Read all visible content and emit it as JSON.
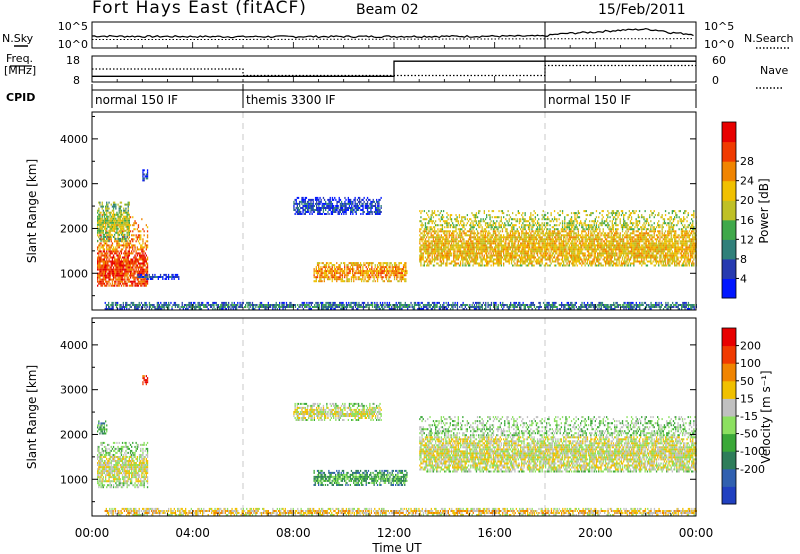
{
  "header": {
    "site": "Fort Hays East (fitACF)",
    "beam": "Beam 02",
    "date": "15/Feb/2011"
  },
  "left_labels": {
    "nsky": "N.Sky",
    "freq_line1": "Freq.",
    "freq_line2": "[MHz]",
    "cpid": "CPID"
  },
  "right_labels": {
    "nsearch": "N.Search",
    "nave": "Nave"
  },
  "chart_data": [
    {
      "type": "line",
      "name": "noise-panel",
      "left_axis": {
        "ticks": [
          "10^5",
          "10^0"
        ]
      },
      "right_axis": {
        "ticks": [
          "10^5",
          "10^0"
        ]
      },
      "series": [
        {
          "name": "N.Sky",
          "style": "solid",
          "x": [
            0,
            2,
            4,
            6,
            8,
            10,
            12,
            14,
            16,
            18,
            20,
            21,
            22,
            23,
            24
          ],
          "y": [
            300,
            250,
            240,
            220,
            230,
            240,
            250,
            260,
            280,
            300,
            2000,
            5000,
            8000,
            1500,
            500
          ]
        },
        {
          "name": "N.Search",
          "style": "dotted",
          "x": [
            0,
            6,
            12,
            18,
            24
          ],
          "y": [
            60,
            60,
            70,
            80,
            90
          ]
        }
      ]
    },
    {
      "type": "line",
      "name": "freq-nave-panel",
      "left_axis": {
        "label": "Freq. [MHz]",
        "ticks": [
          "18",
          "8"
        ],
        "range": [
          8,
          18
        ]
      },
      "right_axis": {
        "label": "Nave",
        "ticks": [
          "60",
          "0"
        ],
        "range": [
          0,
          60
        ]
      },
      "series": [
        {
          "name": "Freq",
          "style": "solid",
          "segments": [
            {
              "x0": 0,
              "x1": 6,
              "y": 10.2
            },
            {
              "x0": 6,
              "x1": 12,
              "y": 10.2
            },
            {
              "x0": 12,
              "x1": 18,
              "y": 16
            },
            {
              "x0": 18,
              "x1": 24,
              "y": 16
            }
          ]
        },
        {
          "name": "Nave",
          "style": "dotted",
          "segments": [
            {
              "x0": 0,
              "x1": 6,
              "y": 30
            },
            {
              "x0": 6,
              "x1": 12,
              "y": 15
            },
            {
              "x0": 12,
              "x1": 18,
              "y": 15
            },
            {
              "x0": 18,
              "x1": 24,
              "y": 38
            }
          ]
        }
      ]
    },
    {
      "type": "table",
      "name": "cpid-strip",
      "segments": [
        {
          "label": "normal 150 IF",
          "start": 0,
          "end": 6
        },
        {
          "label": "themis 3300 IF",
          "start": 6,
          "end": 18
        },
        {
          "label": "normal 150 IF",
          "start": 18,
          "end": 24
        }
      ]
    },
    {
      "type": "heatmap",
      "name": "power-panel",
      "ylabel": "Slant Range [km]",
      "y_ticks": [
        1000,
        2000,
        3000,
        4000
      ],
      "ylim": [
        180,
        4600
      ],
      "xlim": [
        0,
        24
      ],
      "colorbar": {
        "label": "Power [dB]",
        "ticks": [
          4,
          8,
          12,
          16,
          20,
          24,
          28
        ],
        "colors": [
          "#0016ff",
          "#263ab0",
          "#30807a",
          "#3fa84a",
          "#bfc026",
          "#f0c000",
          "#f08400",
          "#f03a00",
          "#e80000"
        ]
      },
      "regions": [
        {
          "x0": 0.2,
          "x1": 2.2,
          "y0": 700,
          "y1": 2300,
          "center": 1000,
          "level": 7
        },
        {
          "x0": 0.2,
          "x1": 1.5,
          "y0": 1700,
          "y1": 2600,
          "center": 2100,
          "level": 4
        },
        {
          "x0": 2.0,
          "x1": 2.2,
          "y0": 3050,
          "y1": 3300,
          "center": 3150,
          "level": 1
        },
        {
          "x0": 1.8,
          "x1": 3.5,
          "y0": 850,
          "y1": 950,
          "center": 900,
          "level": 1
        },
        {
          "x0": 8.8,
          "x1": 12.5,
          "y0": 800,
          "y1": 1250,
          "center": 1000,
          "level": 6
        },
        {
          "x0": 8.0,
          "x1": 11.5,
          "y0": 2300,
          "y1": 2700,
          "center": 2450,
          "level": 1
        },
        {
          "x0": 13.0,
          "x1": 24.0,
          "y0": 1150,
          "y1": 2400,
          "center": 1550,
          "level": 5
        },
        {
          "x0": 0.5,
          "x1": 24.0,
          "y0": 180,
          "y1": 330,
          "center": 250,
          "level": 2
        }
      ]
    },
    {
      "type": "heatmap",
      "name": "velocity-panel",
      "ylabel": "Slant Range [km]",
      "y_ticks": [
        1000,
        2000,
        3000,
        4000
      ],
      "ylim": [
        180,
        4600
      ],
      "xlim": [
        0,
        24
      ],
      "colorbar": {
        "label": "Velocity [m s⁻¹]",
        "ticks": [
          "200",
          "100",
          "50",
          "15",
          "-15",
          "-50",
          "-100",
          "-200"
        ],
        "colors": [
          "#2040c0",
          "#3060b0",
          "#2e7d5a",
          "#3aa838",
          "#8ce060",
          "#c0c0c0",
          "#f0c000",
          "#f08400",
          "#f03a00",
          "#e80000"
        ]
      },
      "regions": [
        {
          "x0": 0.2,
          "x1": 2.2,
          "y0": 800,
          "y1": 1800,
          "center": 1200,
          "level": 5
        },
        {
          "x0": 0.2,
          "x1": 0.6,
          "y0": 2000,
          "y1": 2300,
          "center": 2100,
          "level": 3
        },
        {
          "x0": 2.0,
          "x1": 2.2,
          "y0": 3100,
          "y1": 3300,
          "center": 3200,
          "level": 9
        },
        {
          "x0": 8.8,
          "x1": 12.5,
          "y0": 850,
          "y1": 1200,
          "center": 1000,
          "level": 3
        },
        {
          "x0": 8.0,
          "x1": 11.5,
          "y0": 2300,
          "y1": 2700,
          "center": 2450,
          "level": 5
        },
        {
          "x0": 13.0,
          "x1": 24.0,
          "y0": 1150,
          "y1": 2400,
          "center": 1550,
          "level": 5
        },
        {
          "x0": 0.5,
          "x1": 24.0,
          "y0": 180,
          "y1": 330,
          "center": 250,
          "level": 6
        }
      ]
    }
  ],
  "x_axis": {
    "label": "Time UT",
    "ticks": [
      "00:00",
      "04:00",
      "08:00",
      "12:00",
      "16:00",
      "20:00",
      "00:00"
    ],
    "tick_hours": [
      0,
      4,
      8,
      12,
      16,
      20,
      24
    ]
  }
}
